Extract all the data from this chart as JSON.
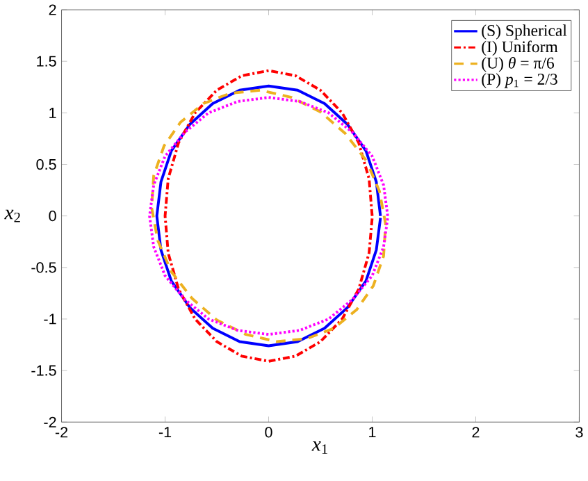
{
  "chart_data": {
    "type": "line",
    "xlabel": "*x*$_{1}$",
    "ylabel": "*x*$_{2}$",
    "xlim": [
      -2,
      3
    ],
    "ylim": [
      -2,
      2
    ],
    "xticks": [
      -2,
      -1,
      0,
      1,
      2,
      3
    ],
    "yticks": [
      -2,
      -1.5,
      -1,
      -0.5,
      0,
      0.5,
      1,
      1.5,
      2
    ],
    "legend": "top right",
    "grid": false,
    "marker": "none",
    "series": [
      {
        "name": "(S) Spherical",
        "color": "#0000ff",
        "line_style": "solid",
        "x": [
          1.08,
          1.04,
          0.94,
          0.76,
          0.54,
          0.28,
          0,
          -0.28,
          -0.54,
          -0.76,
          -0.94,
          -1.04,
          -1.08,
          -1.04,
          -0.94,
          -0.76,
          -0.54,
          -0.28,
          0,
          0.28,
          0.54,
          0.76,
          0.94,
          1.04,
          1.08
        ],
        "values": [
          0,
          0.33,
          0.63,
          0.89,
          1.09,
          1.22,
          1.26,
          1.22,
          1.09,
          0.89,
          0.63,
          0.33,
          0,
          -0.33,
          -0.63,
          -0.89,
          -1.09,
          -1.22,
          -1.26,
          -1.22,
          -1.09,
          -0.89,
          -0.63,
          -0.33,
          -0.02
        ]
      },
      {
        "name": "(I) Uniform",
        "color": "#ff0000",
        "line_style": "dashdot",
        "x": [
          1,
          0.97,
          0.87,
          0.71,
          0.5,
          0.26,
          0,
          -0.26,
          -0.5,
          -0.71,
          -0.87,
          -0.97,
          -1,
          -0.97,
          -0.87,
          -0.71,
          -0.5,
          -0.26,
          0,
          0.26,
          0.5,
          0.71,
          0.87,
          0.97,
          1
        ],
        "values": [
          0,
          0.36,
          0.71,
          1.0,
          1.22,
          1.36,
          1.41,
          1.36,
          1.22,
          1.0,
          0.71,
          0.36,
          0,
          -0.36,
          -0.71,
          -1.0,
          -1.22,
          -1.36,
          -1.41,
          -1.36,
          -1.22,
          -1.0,
          -0.71,
          -0.36,
          -0.02
        ]
      },
      {
        "name": "(U) *θ* = π/6",
        "color": "#edb120",
        "line_style": "dashed",
        "x": [
          0.94,
          0.74,
          0.5,
          0.22,
          -0.08,
          -0.37,
          -0.63,
          -0.85,
          -1.01,
          -1.11,
          -1.13,
          -1.07,
          -0.94,
          -0.74,
          -0.5,
          -0.22,
          0.08,
          0.37,
          0.63,
          0.85,
          1.01,
          1.11,
          1.13,
          1.07,
          0.96
        ],
        "values": [
          0.54,
          0.8,
          1.01,
          1.15,
          1.22,
          1.19,
          1.09,
          0.91,
          0.68,
          0.39,
          0.08,
          -0.24,
          -0.54,
          -0.8,
          -1.01,
          -1.15,
          -1.22,
          -1.19,
          -1.09,
          -0.91,
          -0.68,
          -0.39,
          -0.08,
          0.24,
          0.5
        ]
      },
      {
        "name": "(P) *p*$_{1}$ = 2/3",
        "color": "#ff00ff",
        "line_style": "dotted",
        "x": [
          1.15,
          1.11,
          1.0,
          0.81,
          0.58,
          0.3,
          0,
          -0.3,
          -0.58,
          -0.81,
          -1.0,
          -1.11,
          -1.15,
          -1.11,
          -1.0,
          -0.81,
          -0.58,
          -0.3,
          0,
          0.3,
          0.58,
          0.81,
          1.0,
          1.11,
          1.15
        ],
        "values": [
          0,
          0.3,
          0.58,
          0.81,
          1.0,
          1.11,
          1.15,
          1.11,
          1.0,
          0.81,
          0.58,
          0.3,
          0,
          -0.3,
          -0.58,
          -0.81,
          -1.0,
          -1.11,
          -1.15,
          -1.11,
          -1.0,
          -0.81,
          -0.58,
          -0.3,
          -0.02
        ]
      }
    ]
  }
}
